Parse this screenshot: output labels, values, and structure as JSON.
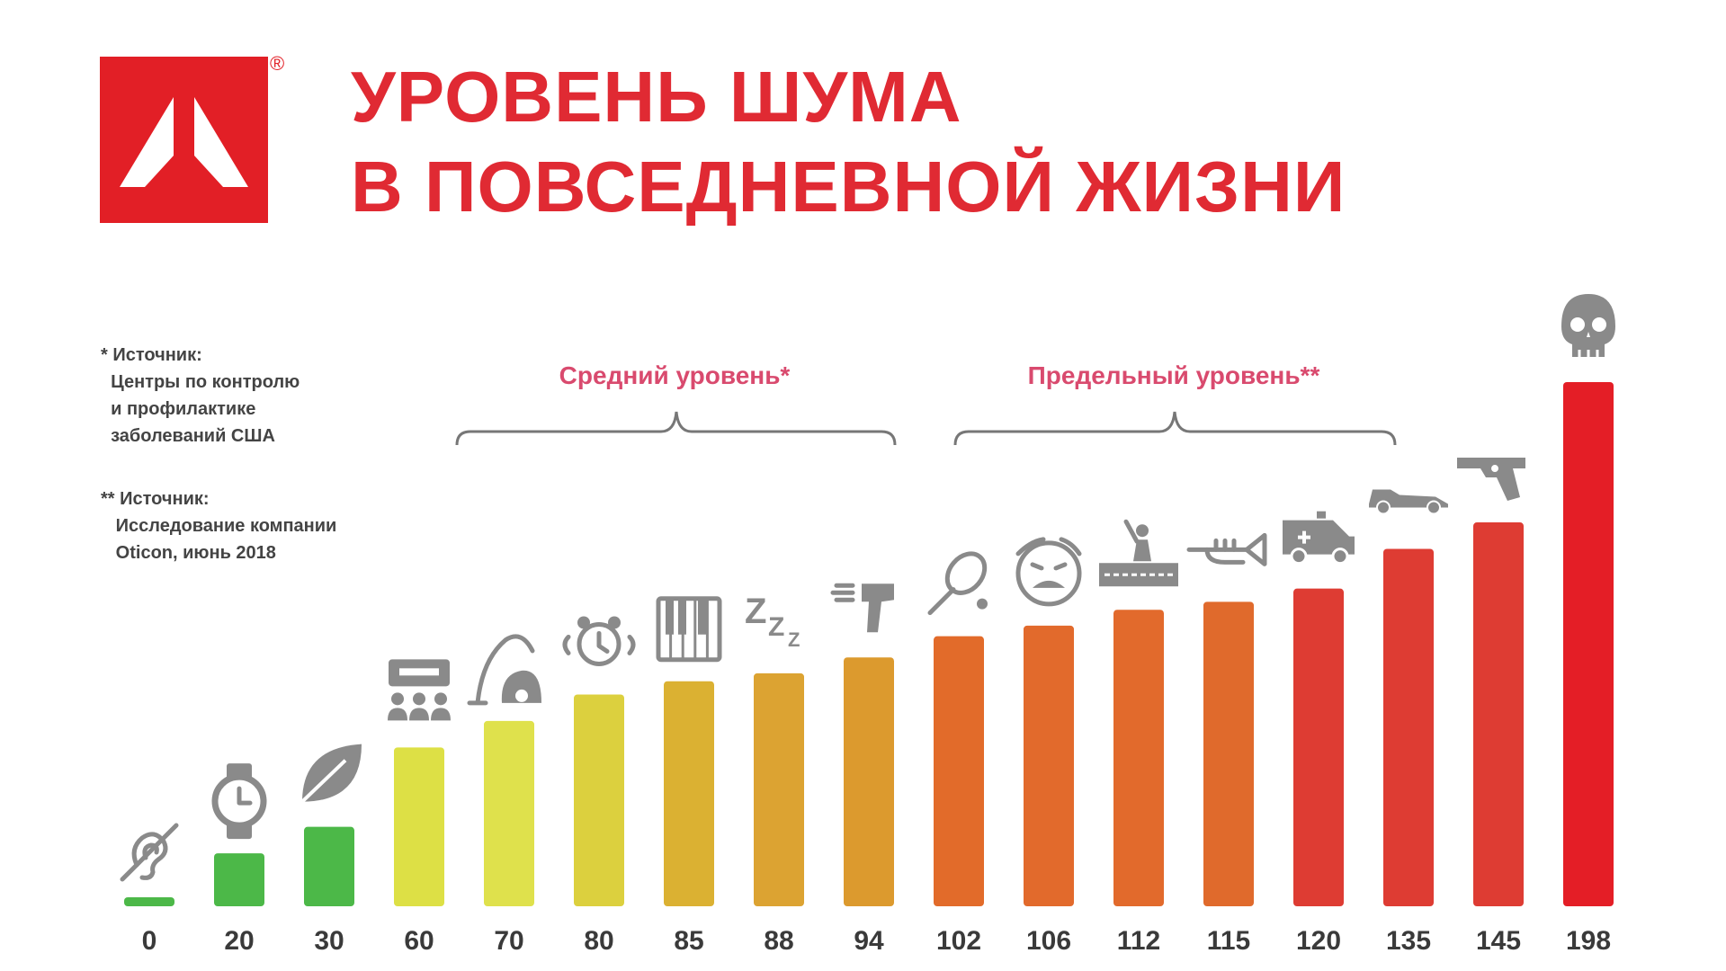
{
  "header": {
    "title_line1": "УРОВЕНЬ ШУМА",
    "title_line2": "В ПОВСЕДНЕВНОЙ ЖИЗНИ",
    "registered_mark": "®"
  },
  "notes": {
    "note1": "* Источник:\n  Центры по контролю\n  и профилактике\n  заболеваний США",
    "note2": "** Источник:\n   Исследование компании\n   Oticon, июнь 2018"
  },
  "ranges": {
    "average_label": "Средний уровень*",
    "limit_label": "Предельный уровень**"
  },
  "colors": {
    "brand_red": "#e21f26",
    "title_red": "#e02a33",
    "range_pink": "#d94a6e",
    "icon_gray": "#8a8a8a"
  },
  "chart_data": {
    "type": "bar",
    "title": "УРОВЕНЬ ШУМА В ПОВСЕДНЕВНОЙ ЖИЗНИ",
    "xlabel": "",
    "ylabel": "",
    "grid": false,
    "categories": [
      "0",
      "20",
      "30",
      "60",
      "70",
      "80",
      "85",
      "88",
      "94",
      "102",
      "106",
      "112",
      "115",
      "120",
      "135",
      "145",
      "198"
    ],
    "values": [
      0,
      20,
      30,
      60,
      70,
      80,
      85,
      88,
      94,
      102,
      106,
      112,
      115,
      120,
      135,
      145,
      198
    ],
    "bar_colors": [
      "#4cb848",
      "#4cb848",
      "#4cb848",
      "#dde045",
      "#dfe14c",
      "#dcd03e",
      "#dbb132",
      "#dca332",
      "#dc9a2e",
      "#e26b2a",
      "#e26a2c",
      "#e26a2c",
      "#e06a2c",
      "#de3c33",
      "#de3c33",
      "#de3c33",
      "#e41e26"
    ],
    "icons": [
      "deaf-icon",
      "wristwatch-icon",
      "leaf-icon",
      "conversation-icon",
      "vacuum-cleaner-icon",
      "alarm-clock-icon",
      "piano-icon",
      "snoring-icon",
      "hair-dryer-icon",
      "tennis-racket-icon",
      "crying-baby-icon",
      "concert-icon",
      "trumpet-icon",
      "ambulance-icon",
      "race-car-icon",
      "revolver-icon",
      "skull-icon"
    ]
  }
}
